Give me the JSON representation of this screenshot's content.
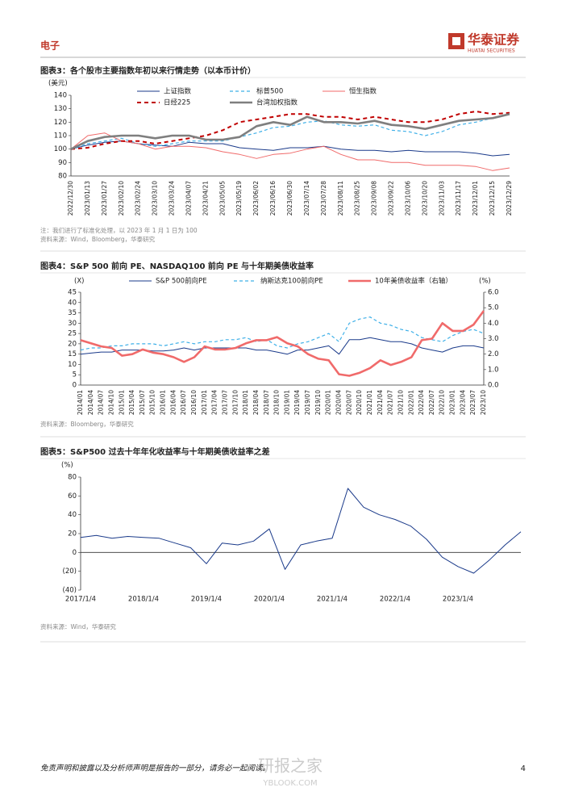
{
  "header": {
    "section": "电子",
    "logo_cn": "华泰证券",
    "logo_en": "HUATAI SECURITIES"
  },
  "chart_data": [
    {
      "type": "line",
      "title": "图表3：各个股市主要指数年初以来行情走势（以本币计价）",
      "ylabel": "(美元)",
      "categories": [
        "2022/12/30",
        "2023/01/13",
        "2023/01/27",
        "2023/02/10",
        "2023/02/24",
        "2023/03/10",
        "2023/03/24",
        "2023/04/07",
        "2023/04/21",
        "2023/05/05",
        "2023/05/19",
        "2023/06/02",
        "2023/06/16",
        "2023/06/30",
        "2023/07/14",
        "2023/07/28",
        "2023/08/11",
        "2023/08/25",
        "2023/09/08",
        "2023/09/22",
        "2023/10/06",
        "2023/10/20",
        "2023/11/03",
        "2023/11/17",
        "2023/12/01",
        "2023/12/15",
        "2023/12/29"
      ],
      "ylim": [
        80,
        140
      ],
      "yticks": [
        80,
        90,
        100,
        110,
        120,
        130,
        140
      ],
      "legend": "top",
      "series": [
        {
          "name": "上证指数",
          "color": "#1a3a8a",
          "style": "solid",
          "values": [
            100,
            103,
            105,
            106,
            104,
            103,
            102,
            105,
            104,
            104,
            101,
            100,
            99,
            101,
            101,
            102,
            100,
            99,
            99,
            98,
            99,
            98,
            98,
            98,
            97,
            95,
            96
          ]
        },
        {
          "name": "标普500",
          "color": "#3fb0e8",
          "style": "dashed",
          "values": [
            100,
            104,
            106,
            108,
            104,
            102,
            104,
            106,
            106,
            106,
            109,
            112,
            116,
            117,
            120,
            121,
            118,
            117,
            118,
            114,
            113,
            110,
            113,
            118,
            120,
            123,
            126
          ]
        },
        {
          "name": "恒生指数",
          "color": "#f06a6a",
          "style": "solid",
          "values": [
            100,
            110,
            112,
            106,
            104,
            100,
            102,
            102,
            101,
            98,
            96,
            93,
            96,
            97,
            100,
            102,
            96,
            92,
            92,
            90,
            90,
            88,
            88,
            88,
            87,
            84,
            86
          ]
        },
        {
          "name": "日经225",
          "color": "#c00000",
          "style": "thick-dashed",
          "values": [
            100,
            101,
            104,
            106,
            106,
            104,
            106,
            108,
            110,
            114,
            120,
            122,
            124,
            126,
            126,
            124,
            124,
            122,
            124,
            122,
            120,
            120,
            122,
            126,
            128,
            126,
            127
          ]
        },
        {
          "name": "台湾加权指数",
          "color": "#7f7f7f",
          "style": "thick",
          "values": [
            100,
            106,
            109,
            110,
            110,
            108,
            110,
            110,
            107,
            107,
            109,
            117,
            120,
            118,
            124,
            120,
            120,
            119,
            121,
            118,
            117,
            115,
            118,
            121,
            122,
            123,
            126
          ]
        }
      ],
      "notes": [
        "注：我们进行了标准化处理，以 2023 年 1 月 1 日为 100",
        "资料来源：Wind，Bloomberg，华泰研究"
      ]
    },
    {
      "type": "line",
      "title": "图表4：S&P 500 前向 PE、NASDAQ100 前向 PE 与十年期美债收益率",
      "ylabel": "(X)",
      "y2label": "(%)",
      "categories": [
        "2014/01",
        "2014/04",
        "2014/07",
        "2014/10",
        "2015/01",
        "2015/04",
        "2015/07",
        "2015/10",
        "2016/01",
        "2016/04",
        "2016/07",
        "2016/10",
        "2017/01",
        "2017/04",
        "2017/07",
        "2017/10",
        "2018/01",
        "2018/04",
        "2018/07",
        "2018/10",
        "2019/01",
        "2019/04",
        "2019/07",
        "2019/10",
        "2020/01",
        "2020/04",
        "2020/07",
        "2020/10",
        "2021/01",
        "2021/04",
        "2021/07",
        "2021/10",
        "2022/01",
        "2022/04",
        "2022/07",
        "2022/10",
        "2023/01",
        "2023/04",
        "2023/07",
        "2023/10"
      ],
      "ylim": [
        0,
        45
      ],
      "yticks": [
        0,
        5,
        10,
        15,
        20,
        25,
        30,
        35,
        40,
        45
      ],
      "y2lim": [
        0,
        6
      ],
      "y2ticks": [
        {
          "value": 0,
          "label": "0.0"
        },
        {
          "value": 1,
          "label": "1.0"
        },
        {
          "value": 2,
          "label": "2.0"
        },
        {
          "value": 3,
          "label": "3.0"
        },
        {
          "value": 4,
          "label": "4.0"
        },
        {
          "value": 5,
          "label": "5.0"
        },
        {
          "value": 6,
          "label": "6.0"
        }
      ],
      "legend": "top",
      "series": [
        {
          "name": "S&P 500前向PE",
          "color": "#1a3a8a",
          "style": "solid",
          "values": [
            15,
            15.5,
            16,
            16,
            17,
            17,
            17,
            16.5,
            16.5,
            17,
            18,
            17,
            18,
            18,
            18,
            18,
            18,
            17,
            17,
            16,
            15,
            17,
            17,
            18,
            19,
            15,
            22,
            22,
            23,
            22,
            21,
            21,
            20,
            18,
            17,
            16,
            18,
            19,
            19,
            18
          ]
        },
        {
          "name": "纳斯达克100前向PE",
          "color": "#3fb0e8",
          "style": "dashed",
          "values": [
            17,
            18,
            18,
            19,
            19,
            20,
            20,
            20,
            19,
            20,
            21,
            20,
            21,
            21,
            22,
            22,
            23,
            21,
            22,
            19,
            18,
            20,
            21,
            23,
            25,
            21,
            30,
            32,
            33,
            30,
            29,
            27,
            26,
            23,
            22,
            21,
            24,
            26,
            27,
            25
          ]
        },
        {
          "name": "10年美债收益率（右轴）",
          "color": "#f06a6a",
          "style": "thick",
          "axis": "y2",
          "values": [
            2.9,
            2.7,
            2.5,
            2.4,
            1.9,
            2.0,
            2.3,
            2.1,
            2.0,
            1.8,
            1.5,
            1.8,
            2.5,
            2.3,
            2.3,
            2.4,
            2.7,
            2.9,
            2.9,
            3.1,
            2.7,
            2.5,
            2.0,
            1.7,
            1.6,
            0.7,
            0.6,
            0.8,
            1.1,
            1.6,
            1.3,
            1.5,
            1.8,
            2.9,
            3.0,
            4.0,
            3.5,
            3.5,
            3.9,
            4.8
          ]
        }
      ],
      "notes": [
        "资料来源：Bloomberg，华泰研究"
      ]
    },
    {
      "type": "line",
      "title": "图表5：S&P500 过去十年年化收益率与十年期美债收益率之差",
      "ylabel": "(%)",
      "categories": [
        "2017/1/4",
        null,
        null,
        null,
        "2018/1/4",
        null,
        null,
        null,
        "2019/1/4",
        null,
        null,
        null,
        "2020/1/4",
        null,
        null,
        null,
        "2021/1/4",
        null,
        null,
        null,
        "2022/1/4",
        null,
        null,
        null,
        "2023/1/4",
        null,
        null,
        null,
        null
      ],
      "ylim": [
        -40,
        80
      ],
      "yticks": [
        {
          "value": -40,
          "label": "(40)"
        },
        {
          "value": -20,
          "label": "(20)"
        },
        0,
        20,
        40,
        60,
        80
      ],
      "color": "#1a3a8a",
      "values": [
        16,
        18,
        15,
        17,
        16,
        15,
        10,
        5,
        -12,
        10,
        8,
        12,
        25,
        -18,
        8,
        12,
        15,
        68,
        48,
        40,
        35,
        28,
        14,
        -5,
        -15,
        -22,
        -8,
        8,
        22
      ],
      "notes": [
        "资料来源：Wind，华泰研究"
      ]
    }
  ],
  "footer": {
    "disclaimer": "免责声明和披露以及分析师声明是报告的一部分，请务必一起阅读。",
    "page": 4,
    "watermark": [
      "研报之家",
      "YBLOOK.COM"
    ]
  }
}
